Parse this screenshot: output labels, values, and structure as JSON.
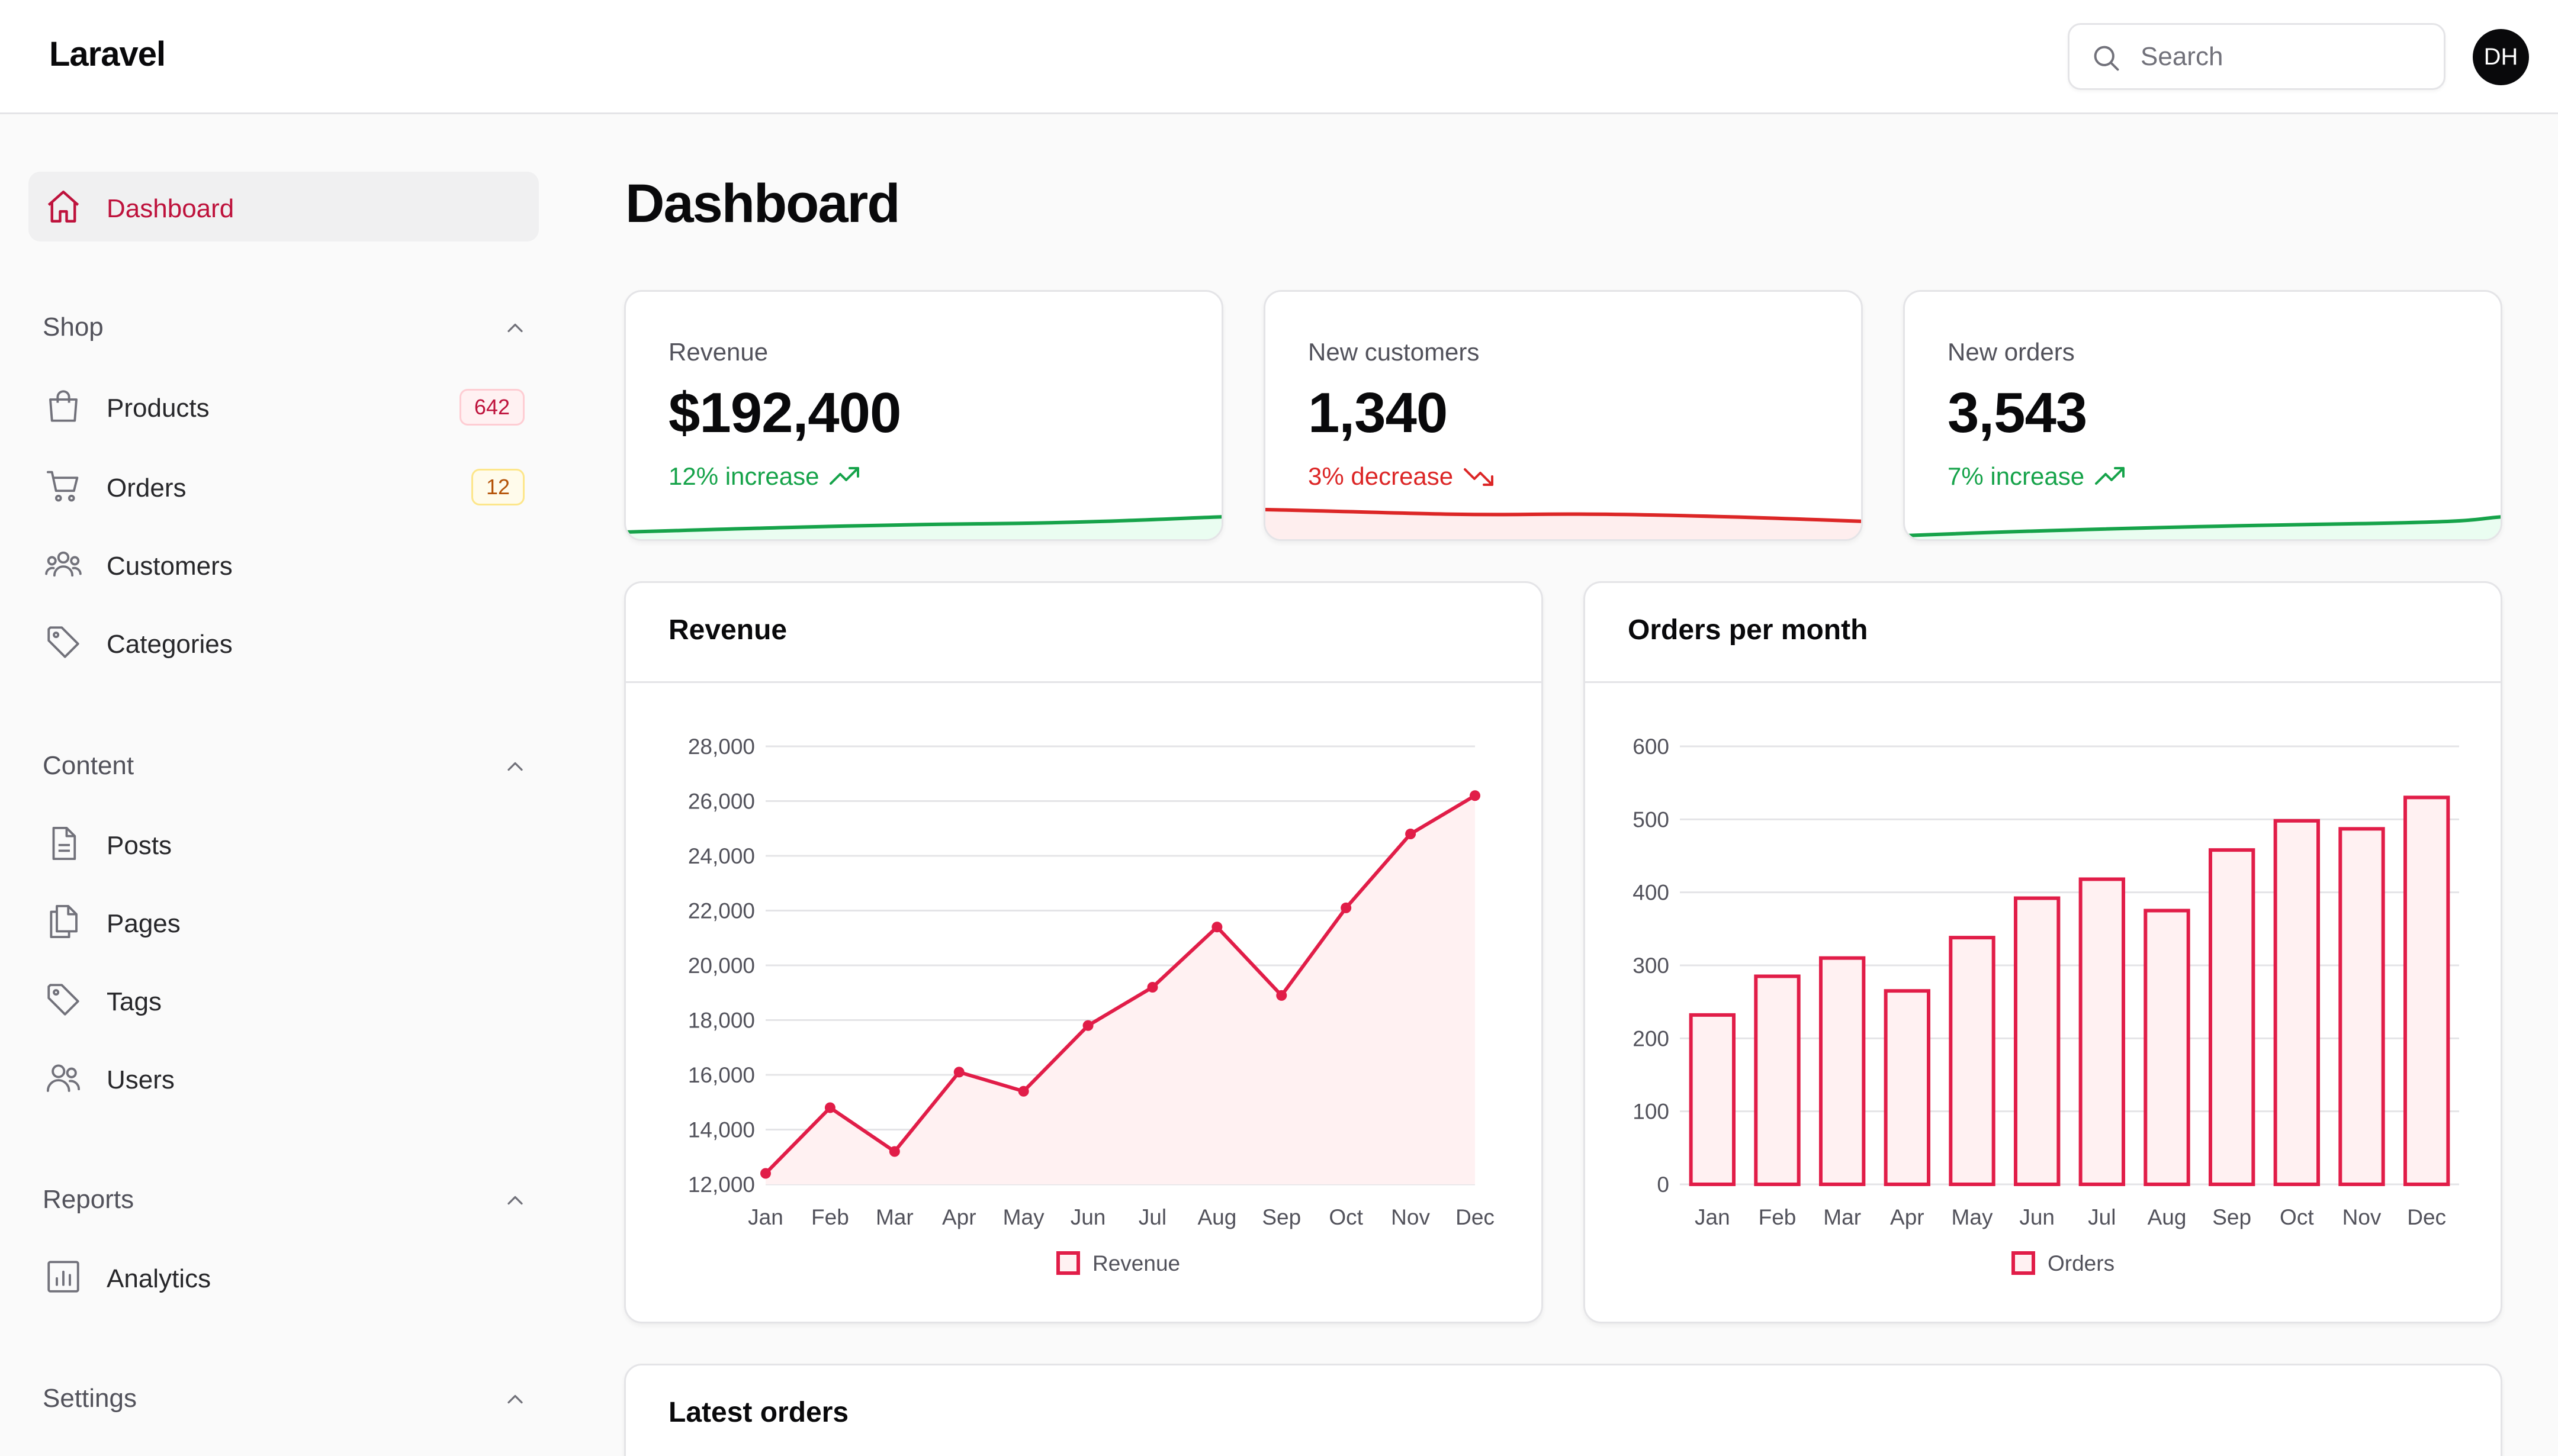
{
  "app": {
    "brand": "Laravel",
    "avatar_initials": "DH"
  },
  "search": {
    "placeholder": "Search",
    "value": ""
  },
  "colors": {
    "accent": "#be123c",
    "chart": "#e11d48",
    "chart_fill": "#fff1f2",
    "up": "#16a34a",
    "down": "#dc2626"
  },
  "sidebar": {
    "dashboard": {
      "label": "Dashboard",
      "icon": "home-icon"
    },
    "groups": {
      "shop": {
        "label": "Shop",
        "items": [
          {
            "label": "Products",
            "icon": "shopping-bag-icon",
            "badge": "642"
          },
          {
            "label": "Orders",
            "icon": "shopping-cart-icon",
            "badge": "12"
          },
          {
            "label": "Customers",
            "icon": "users-group-icon"
          },
          {
            "label": "Categories",
            "icon": "tag-icon"
          }
        ]
      },
      "content": {
        "label": "Content",
        "items": [
          {
            "label": "Posts",
            "icon": "document-icon"
          },
          {
            "label": "Pages",
            "icon": "documents-icon"
          },
          {
            "label": "Tags",
            "icon": "tag-icon"
          },
          {
            "label": "Users",
            "icon": "users-icon"
          }
        ]
      },
      "reports": {
        "label": "Reports",
        "items": [
          {
            "label": "Analytics",
            "icon": "chart-bar-icon"
          }
        ]
      },
      "settings": {
        "label": "Settings"
      }
    }
  },
  "main": {
    "title": "Dashboard",
    "stats": [
      {
        "label": "Revenue",
        "value": "$192,400",
        "change": "12% increase",
        "trend": "up"
      },
      {
        "label": "New customers",
        "value": "1,340",
        "change": "3% decrease",
        "trend": "down"
      },
      {
        "label": "New orders",
        "value": "3,543",
        "change": "7% increase",
        "trend": "up"
      }
    ],
    "latest_orders_title": "Latest orders"
  },
  "chart_data": [
    {
      "type": "line",
      "title": "Revenue",
      "categories": [
        "Jan",
        "Feb",
        "Mar",
        "Apr",
        "May",
        "Jun",
        "Jul",
        "Aug",
        "Sep",
        "Oct",
        "Nov",
        "Dec"
      ],
      "series": [
        {
          "name": "Revenue",
          "values": [
            12400,
            14800,
            13200,
            16100,
            15400,
            17800,
            19200,
            21400,
            18900,
            22100,
            24800,
            26200
          ]
        }
      ],
      "yticks": [
        "12,000",
        "14,000",
        "16,000",
        "18,000",
        "20,000",
        "22,000",
        "24,000",
        "26,000",
        "28,000"
      ],
      "ylim": [
        12000,
        28000
      ],
      "fill": true,
      "legend": "bottom"
    },
    {
      "type": "bar",
      "title": "Orders per month",
      "categories": [
        "Jan",
        "Feb",
        "Mar",
        "Apr",
        "May",
        "Jun",
        "Jul",
        "Aug",
        "Sep",
        "Oct",
        "Nov",
        "Dec"
      ],
      "series": [
        {
          "name": "Orders",
          "values": [
            232,
            285,
            310,
            265,
            338,
            392,
            418,
            375,
            458,
            498,
            487,
            530
          ]
        }
      ],
      "yticks": [
        "0",
        "100",
        "200",
        "300",
        "400",
        "500",
        "600"
      ],
      "ylim": [
        0,
        600
      ],
      "legend": "bottom"
    }
  ]
}
